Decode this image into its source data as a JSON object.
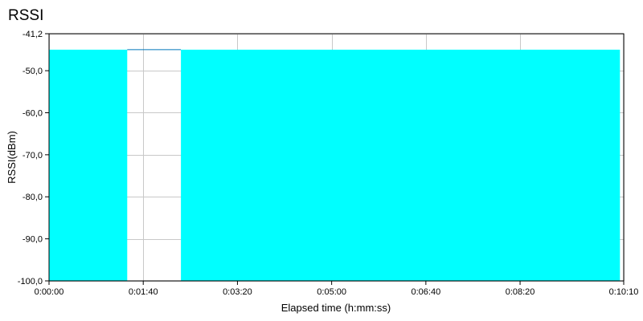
{
  "chart_data": {
    "type": "area",
    "title": "RSSI",
    "xlabel": "Elapsed time (h:mm:ss)",
    "ylabel": "RSSI(dBm)",
    "xlim": [
      0,
      610
    ],
    "ylim": [
      -100.0,
      -41.2
    ],
    "x_ticks": [
      0,
      100,
      200,
      300,
      400,
      500,
      610
    ],
    "x_tick_labels": [
      "0:00:00",
      "0:01:40",
      "0:03:20",
      "0:05:00",
      "0:06:40",
      "0:08:20",
      "0:10:10"
    ],
    "y_ticks": [
      -41.2,
      -50.0,
      -60.0,
      -70.0,
      -80.0,
      -90.0,
      -100.0
    ],
    "y_tick_labels": [
      "-41,2",
      "-50,0",
      "-60,0",
      "-70,0",
      "-80,0",
      "-90,0",
      "-100,0"
    ],
    "grid": true,
    "series": [
      {
        "color": "#00ffff",
        "line_color": "#0077bb",
        "segments": [
          {
            "x_start": 0,
            "x_end": 83,
            "value": -45.0,
            "filled": true
          },
          {
            "x_start": 83,
            "x_end": 140,
            "value": -45.0,
            "filled": false
          },
          {
            "x_start": 140,
            "x_end": 606,
            "value": -45.0,
            "filled": true
          }
        ]
      }
    ]
  }
}
